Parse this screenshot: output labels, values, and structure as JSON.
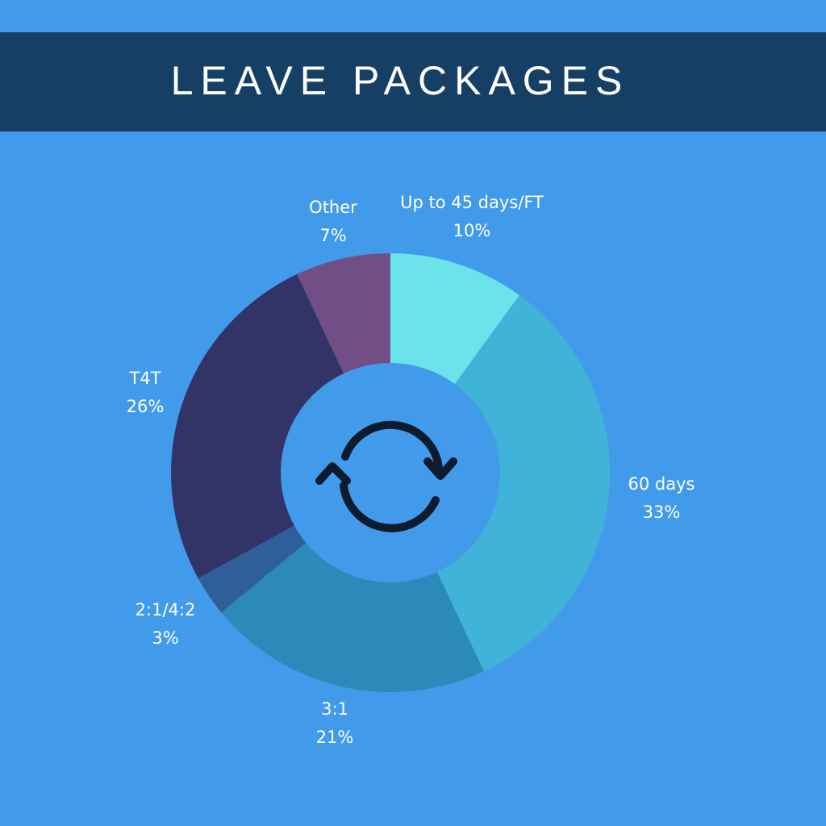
{
  "chart_data": {
    "type": "donut",
    "title": "LEAVE PACKAGES",
    "categories": [
      "Up to 45 days/FT",
      "60 days",
      "3:1",
      "2:1/4:2",
      "T4T",
      "Other"
    ],
    "values": [
      10,
      33,
      21,
      3,
      26,
      7
    ],
    "value_labels": [
      "10%",
      "33%",
      "21%",
      "3%",
      "26%",
      "7%"
    ],
    "colors": [
      "#6ae3ea",
      "#40b4d8",
      "#2c8aba",
      "#2e5f99",
      "#323468",
      "#714f86"
    ]
  }
}
